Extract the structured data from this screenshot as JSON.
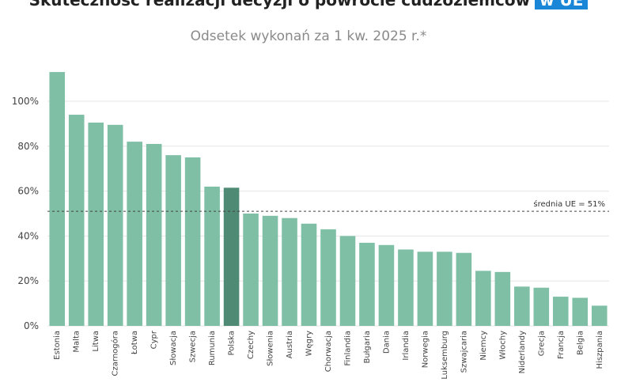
{
  "title": "Skuteczność realizacji decyzji o powrocie cudzoziemców",
  "title_tag": "w UE",
  "subtitle": "Odsetek wykonań za 1 kw. 2025 r.*",
  "colors": {
    "bar": "#7fbfa6",
    "highlight": "#4f8a74",
    "tag_bg": "#1a86d8",
    "avg_line": "#444444"
  },
  "chart_data": {
    "type": "bar",
    "categories": [
      "Estonia",
      "Malta",
      "Litwa",
      "Czarnogóra",
      "Łotwa",
      "Cypr",
      "Słowacja",
      "Szwecja",
      "Rumunia",
      "Polska",
      "Czechy",
      "Słowenia",
      "Austria",
      "Węgry",
      "Chorwacja",
      "Finlandia",
      "Bułgaria",
      "Dania",
      "Irlandia",
      "Norwegia",
      "Luksemburg",
      "Szwajcaria",
      "Niemcy",
      "Włochy",
      "Niderlandy",
      "Grecja",
      "Francja",
      "Belgia",
      "Hiszpania"
    ],
    "values": [
      113,
      94,
      90.5,
      89.5,
      82,
      81,
      76,
      75,
      62,
      61.5,
      50,
      49,
      48,
      45.5,
      43,
      40,
      37,
      36,
      34,
      33,
      33,
      32.5,
      24.5,
      24,
      17.5,
      17,
      13,
      12.5,
      9
    ],
    "highlight": "Polska",
    "average": 51,
    "average_label": "średnia UE = 51%",
    "y_ticks": [
      "0%",
      "20%",
      "40%",
      "60%",
      "80%",
      "100%"
    ],
    "ylim": [
      0,
      113
    ],
    "grid": true
  }
}
